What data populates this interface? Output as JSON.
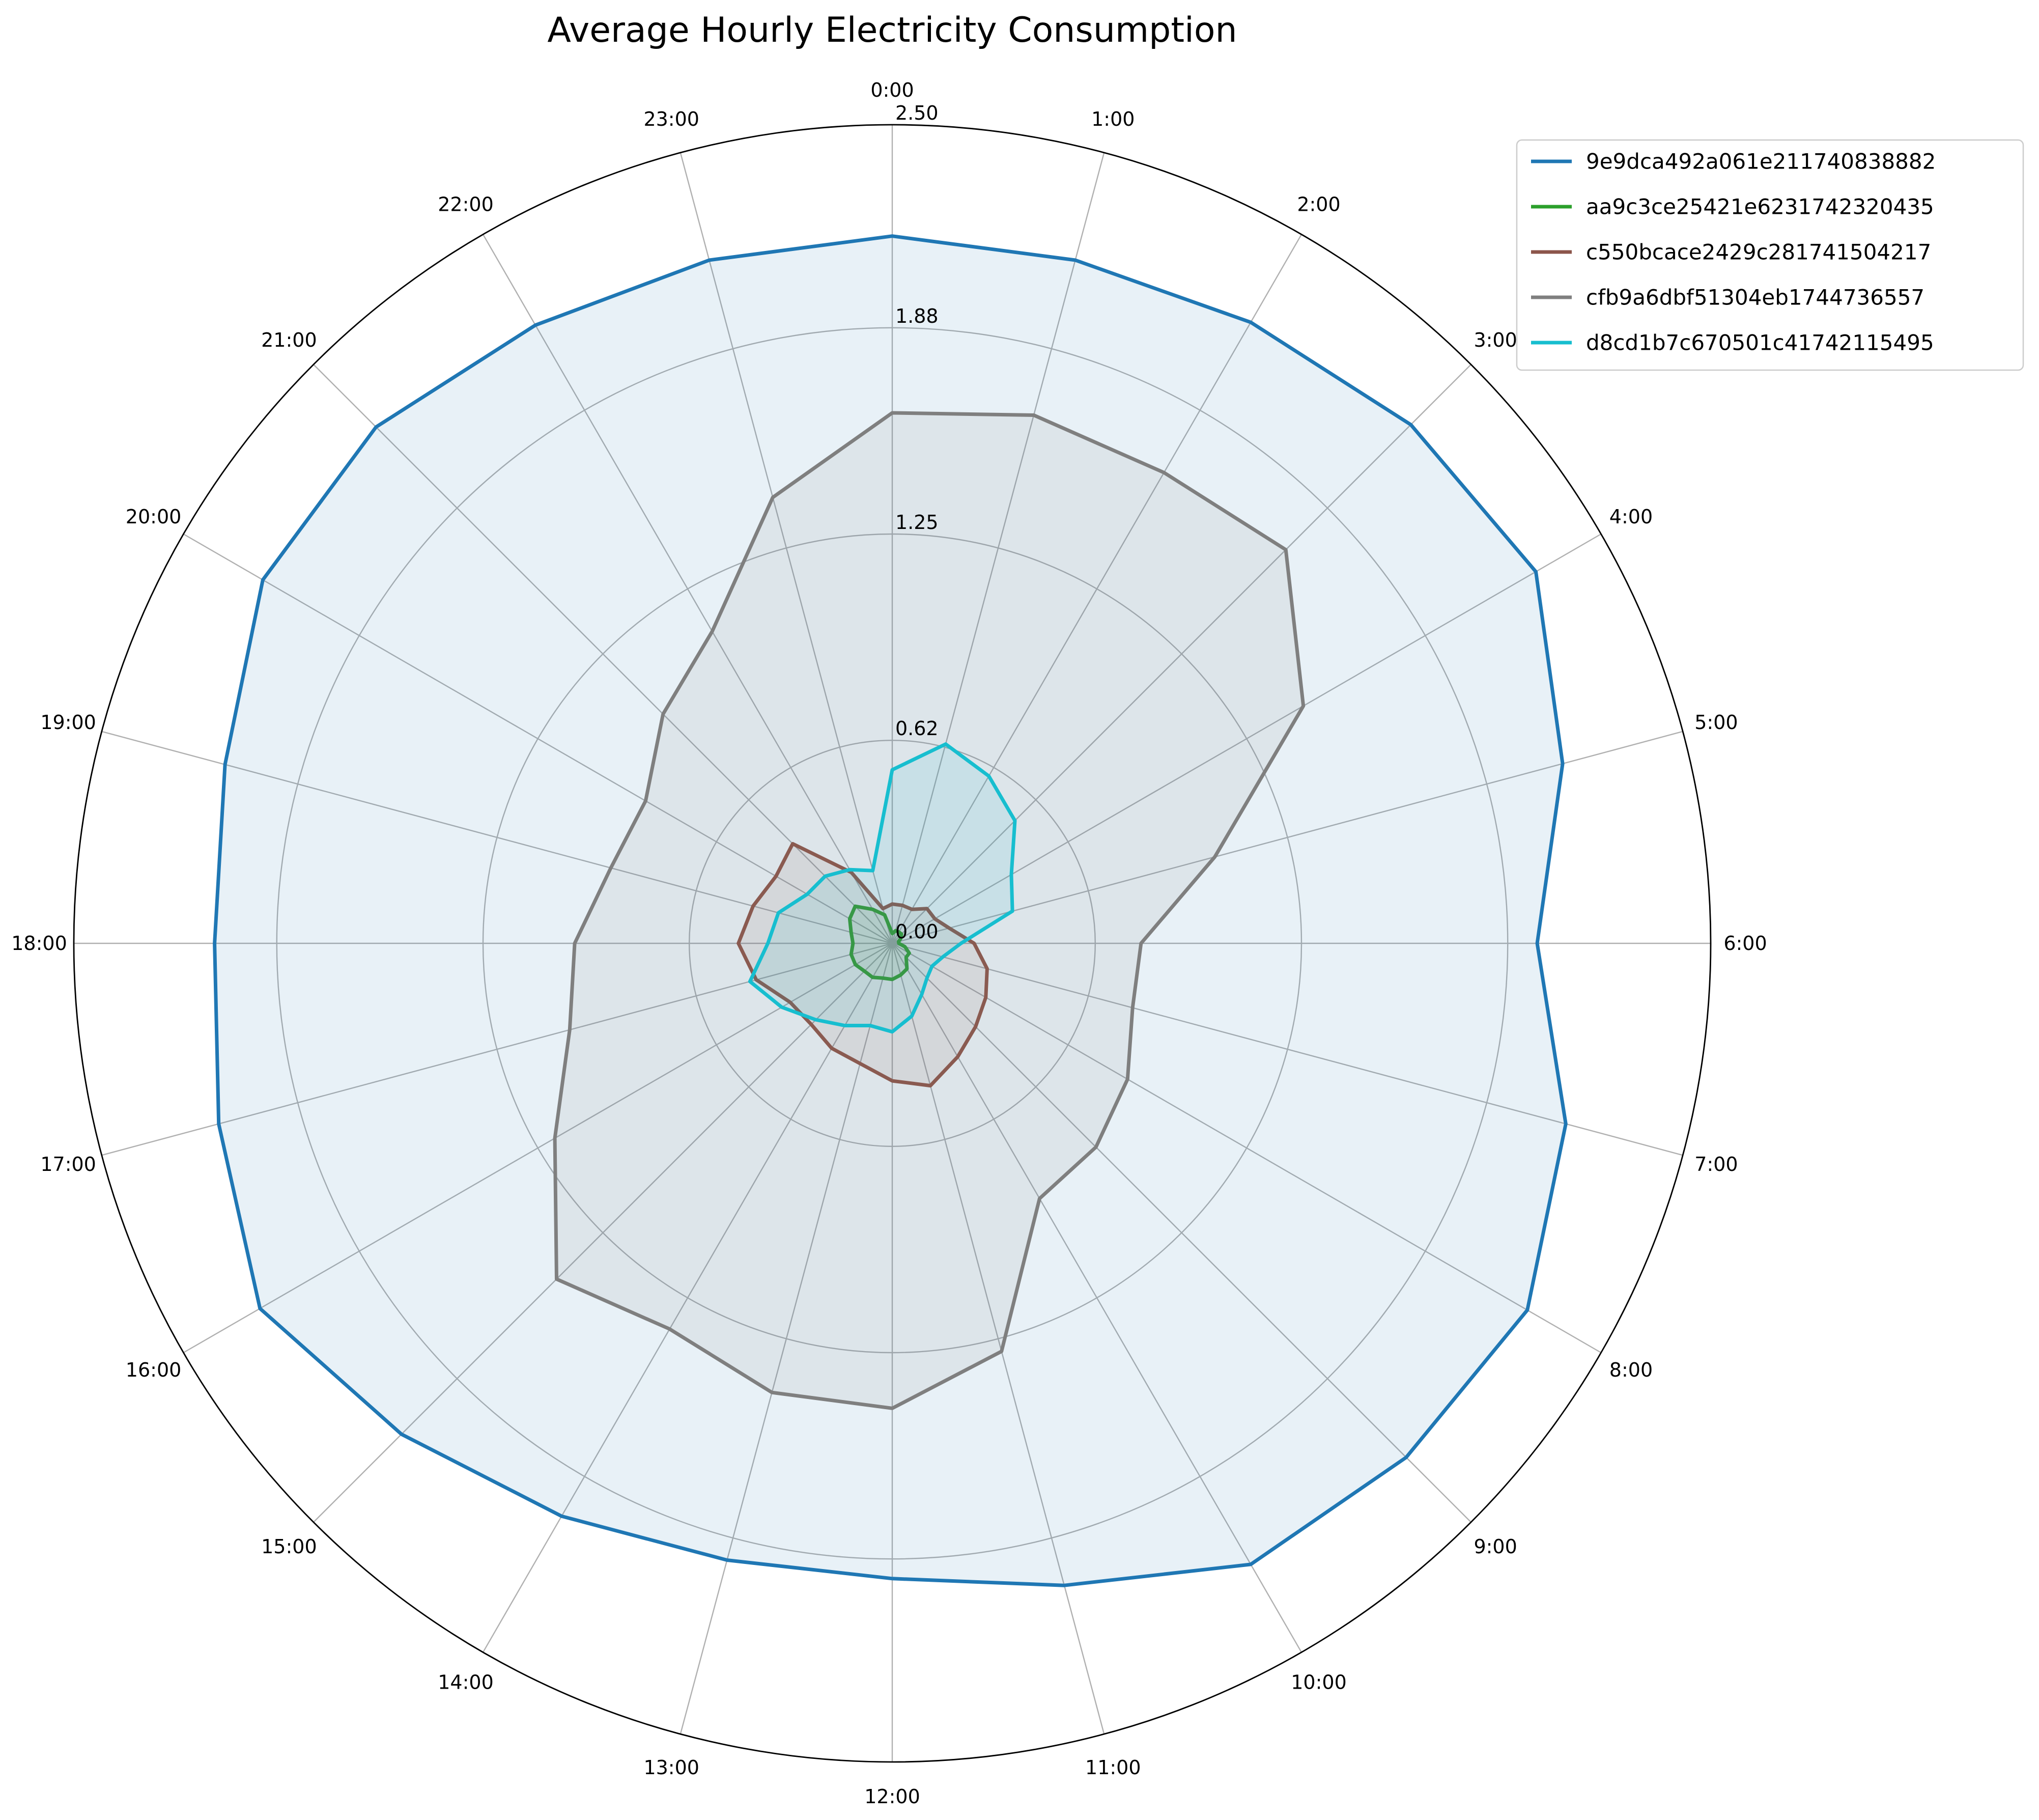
{
  "chart_data": {
    "type": "radar",
    "title": "Average Hourly Electricity Consumption",
    "categories": [
      "0:00",
      "1:00",
      "2:00",
      "3:00",
      "4:00",
      "5:00",
      "6:00",
      "7:00",
      "8:00",
      "9:00",
      "10:00",
      "11:00",
      "12:00",
      "13:00",
      "14:00",
      "15:00",
      "16:00",
      "17:00",
      "18:00",
      "19:00",
      "20:00",
      "21:00",
      "22:00",
      "23:00"
    ],
    "radial_ticks": [
      "0.00",
      "0.62",
      "1.25",
      "1.88",
      "2.50"
    ],
    "rlim": [
      0,
      2.5
    ],
    "grid": true,
    "legend_position": "top-right",
    "fill_alpha": 0.1,
    "series": [
      {
        "name": "9e9dca492a061e211740838882",
        "color": "#1f77b4",
        "values": [
          2.16,
          2.16,
          2.19,
          2.24,
          2.27,
          2.12,
          1.97,
          2.13,
          2.24,
          2.22,
          2.19,
          2.03,
          1.94,
          1.95,
          2.02,
          2.12,
          2.23,
          2.13,
          2.07,
          2.11,
          2.22,
          2.23,
          2.18,
          2.16
        ]
      },
      {
        "name": "aa9c3ce25421e6231742320435",
        "color": "#2ca02c",
        "values": [
          0.03,
          0.04,
          0.04,
          0.04,
          0.03,
          0.02,
          0.02,
          0.04,
          0.06,
          0.06,
          0.09,
          0.1,
          0.11,
          0.11,
          0.12,
          0.12,
          0.13,
          0.13,
          0.12,
          0.13,
          0.15,
          0.16,
          0.12,
          0.09
        ]
      },
      {
        "name": "c550bcace2429c281741504217",
        "color": "#8c564b",
        "values": [
          0.12,
          0.12,
          0.12,
          0.15,
          0.15,
          0.18,
          0.25,
          0.3,
          0.33,
          0.36,
          0.4,
          0.45,
          0.42,
          0.38,
          0.37,
          0.35,
          0.36,
          0.43,
          0.47,
          0.44,
          0.41,
          0.43,
          0.25,
          0.11
        ]
      },
      {
        "name": "cfb9a6dbf51304eb1744736557",
        "color": "#7f7f7f",
        "values": [
          1.62,
          1.67,
          1.66,
          1.7,
          1.45,
          1.02,
          0.76,
          0.76,
          0.83,
          0.88,
          0.9,
          1.29,
          1.42,
          1.42,
          1.36,
          1.45,
          1.19,
          1.02,
          0.97,
          0.89,
          0.87,
          0.99,
          1.1,
          1.41
        ]
      },
      {
        "name": "d8cd1b7c670501c41742115495",
        "color": "#17becf",
        "values": [
          0.53,
          0.63,
          0.59,
          0.53,
          0.42,
          0.38,
          0.21,
          0.16,
          0.14,
          0.15,
          0.18,
          0.23,
          0.27,
          0.26,
          0.29,
          0.33,
          0.39,
          0.45,
          0.38,
          0.36,
          0.3,
          0.29,
          0.26,
          0.23
        ]
      }
    ]
  }
}
